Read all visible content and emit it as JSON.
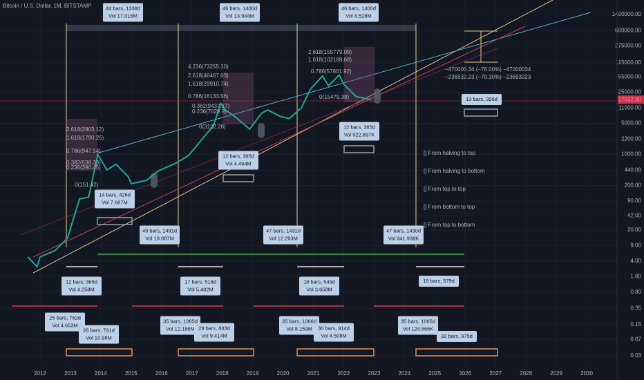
{
  "header": {
    "title": "Bitcoin / U.S. Dollar, 1M, BITSTAMP"
  },
  "chart_data": {
    "type": "line",
    "color": "#26a69a",
    "log_scale": true,
    "grid": true,
    "x": [
      2011.6,
      2011.9,
      2012.0,
      2012.5,
      2012.9,
      2013.3,
      2013.6,
      2013.9,
      2014.2,
      2014.5,
      2014.9,
      2015.0,
      2015.5,
      2015.9,
      2016.5,
      2016.9,
      2017.4,
      2017.7,
      2017.95,
      2018.1,
      2018.5,
      2018.9,
      2019.3,
      2019.5,
      2019.9,
      2020.2,
      2020.6,
      2020.9,
      2021.3,
      2021.5,
      2021.85,
      2022.0,
      2022.4,
      2022.9
    ],
    "values": [
      5,
      3,
      5,
      7,
      13,
      100,
      110,
      1000,
      450,
      600,
      320,
      220,
      260,
      430,
      650,
      960,
      2500,
      4300,
      14000,
      10000,
      6400,
      3700,
      8500,
      10000,
      7200,
      6400,
      11000,
      29000,
      58000,
      35000,
      61000,
      38000,
      20000,
      17032
    ],
    "xlim": [
      2010.68,
      2031.0
    ],
    "xticks": [
      2012,
      2013,
      2014,
      2015,
      2016,
      2017,
      2018,
      2019,
      2020,
      2021,
      2022,
      2023,
      2024,
      2025,
      2026,
      2027,
      2028,
      2029,
      2030
    ],
    "ylim": [
      0.0175,
      2950000
    ],
    "yticks": [
      {
        "value": 1400000,
        "label": "1400000.00"
      },
      {
        "value": 600000,
        "label": "600000.00"
      },
      {
        "value": 275000,
        "label": "275000.00"
      },
      {
        "value": 115000,
        "label": "115000.00"
      },
      {
        "value": 55000,
        "label": "55000.00"
      },
      {
        "value": 25000,
        "label": "25000.00"
      },
      {
        "value": 11000,
        "label": "11000.00"
      },
      {
        "value": 5000,
        "label": "5000.00"
      },
      {
        "value": 2200,
        "label": "2200.00"
      },
      {
        "value": 1000,
        "label": "1000.00"
      },
      {
        "value": 440,
        "label": "440.00"
      },
      {
        "value": 200,
        "label": "200.00"
      },
      {
        "value": 90,
        "label": "90.00"
      },
      {
        "value": 42,
        "label": "42.00"
      },
      {
        "value": 20,
        "label": "20.00"
      },
      {
        "value": 9,
        "label": "9.00"
      },
      {
        "value": 4,
        "label": "4.00"
      },
      {
        "value": 1.8,
        "label": "1.80"
      },
      {
        "value": 0.8,
        "label": "0.80"
      },
      0.35,
      0.15,
      0.07,
      0.03
    ],
    "current_price": {
      "value": 17032,
      "label": "17032.00"
    }
  },
  "measures": [
    [
      "44 bars, 1338d",
      "Vol 17.016M"
    ],
    [
      "46 bars, 1400d",
      "Vol 13.944M"
    ],
    [
      "46 bars, 1400d",
      "Vol 4.528M"
    ],
    [
      "13 bars, 396d"
    ],
    [
      "12 bars, 365d",
      "Vol 922.897K"
    ],
    [
      "12 bars, 365d",
      "Vol 4.494M"
    ],
    [
      "14 bars, 426d",
      "Vol 7.687M"
    ],
    [
      "49 bars, 1491d",
      "Vol 19.087M"
    ],
    [
      "47 bars, 1431d",
      "Vol 12.293M"
    ],
    [
      "47 bars, 1430d",
      "Vol 941.938K"
    ],
    [
      "12 bars, 365d",
      "Vol 4.258M"
    ],
    [
      "17 bars, 518d",
      "Vol 5.482M"
    ],
    [
      "18 bars, 549d",
      "Vol 3.658M"
    ],
    [
      "19 bars, 579d"
    ],
    [
      "25 bars, 762d",
      "Vol 4.653M"
    ],
    [
      "26 bars, 791d",
      "Vol 10.98M"
    ],
    [
      "35 bars, 1065d",
      "Vol 12.186M"
    ],
    [
      "29 bars, 883d",
      "Vol 9.414M"
    ],
    [
      "35 bars, 1066d",
      "Vol 8.159M"
    ],
    [
      "30 bars, 914d",
      "Vol 4.508M"
    ],
    [
      "35 bars, 1065d",
      "Vol 124.566K"
    ],
    [
      "32 bars, 975d"
    ]
  ],
  "legend": [
    "[] From halving to top",
    "[] From halving to bottom",
    "[] From top to top",
    "[] From bottom to top",
    "[] From top to bottom"
  ],
  "range_notes": [
    "−470000.34 (−76.00%) −47000034",
    "−236932.23 (−70.30%) −23693223"
  ],
  "fib_labels": [
    "2.618(2803.12)",
    "1.618(1790.25)",
    "0.786(947.54)",
    "0.382(538.33)",
    "0.236(390.45)",
    "0(151.42)",
    "4.236(73255.10)",
    "2.618(46467.03)",
    "1.618(29910.74)",
    "0.786(16133.56)",
    "0.382(9437.17)",
    "0.236(7029.9)",
    "0(3122.28)",
    "2.618(155779.09)",
    "1.618(102188.68)",
    "0.786(57601.92)",
    "0(15479.38)"
  ]
}
